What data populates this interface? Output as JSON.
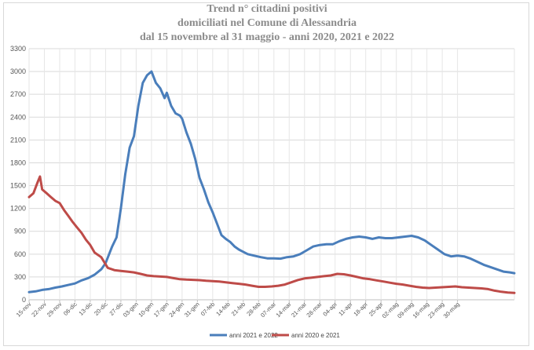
{
  "chart_data": {
    "type": "line",
    "title_lines": [
      "Trend n° cittadini positivi",
      "domiciliati nel Comune di Alessandria",
      "dal 15 novembre al 31 maggio - anni 2020, 2021 e 2022"
    ],
    "xlabel": "",
    "ylabel": "",
    "ylim": [
      0,
      3300
    ],
    "yticks": [
      0,
      300,
      600,
      900,
      1200,
      1500,
      1800,
      2100,
      2400,
      2700,
      3000,
      3300
    ],
    "grid": true,
    "legend_position": "bottom",
    "x_tick_labels": [
      "15-nov",
      "22-nov",
      "29-nov",
      "06-dic",
      "13-dic",
      "20-dic",
      "27-dic",
      "03-gen",
      "10-gen",
      "17-gen",
      "24-gen",
      "31-gen",
      "07-feb",
      "14-feb",
      "21-feb",
      "28-feb",
      "07-mar",
      "14-mar",
      "21-mar",
      "28-mar",
      "04-apr",
      "11-apr",
      "18-apr",
      "25-apr",
      "02-mag",
      "09-mag",
      "16-mag",
      "23-mag",
      "30-mag"
    ],
    "series": [
      {
        "name": "anni 2021 e 2022",
        "color": "#4a7ebb",
        "points": [
          [
            0,
            100
          ],
          [
            3,
            110
          ],
          [
            6,
            130
          ],
          [
            9,
            140
          ],
          [
            12,
            160
          ],
          [
            15,
            175
          ],
          [
            18,
            195
          ],
          [
            21,
            215
          ],
          [
            24,
            255
          ],
          [
            27,
            285
          ],
          [
            30,
            330
          ],
          [
            33,
            400
          ],
          [
            35,
            480
          ],
          [
            38,
            700
          ],
          [
            40,
            820
          ],
          [
            42,
            1200
          ],
          [
            44,
            1650
          ],
          [
            46,
            2000
          ],
          [
            48,
            2150
          ],
          [
            50,
            2550
          ],
          [
            52,
            2850
          ],
          [
            54,
            2950
          ],
          [
            56,
            3000
          ],
          [
            58,
            2850
          ],
          [
            60,
            2780
          ],
          [
            62,
            2650
          ],
          [
            63,
            2720
          ],
          [
            65,
            2550
          ],
          [
            67,
            2450
          ],
          [
            69,
            2420
          ],
          [
            70,
            2380
          ],
          [
            72,
            2200
          ],
          [
            74,
            2050
          ],
          [
            76,
            1850
          ],
          [
            78,
            1600
          ],
          [
            80,
            1450
          ],
          [
            82,
            1280
          ],
          [
            84,
            1150
          ],
          [
            86,
            1000
          ],
          [
            88,
            850
          ],
          [
            90,
            800
          ],
          [
            92,
            760
          ],
          [
            94,
            700
          ],
          [
            96,
            660
          ],
          [
            98,
            630
          ],
          [
            100,
            600
          ],
          [
            103,
            580
          ],
          [
            106,
            560
          ],
          [
            109,
            545
          ],
          [
            112,
            545
          ],
          [
            115,
            540
          ],
          [
            118,
            560
          ],
          [
            121,
            570
          ],
          [
            124,
            600
          ],
          [
            127,
            650
          ],
          [
            130,
            700
          ],
          [
            133,
            720
          ],
          [
            136,
            730
          ],
          [
            139,
            730
          ],
          [
            142,
            770
          ],
          [
            145,
            800
          ],
          [
            148,
            820
          ],
          [
            151,
            830
          ],
          [
            154,
            820
          ],
          [
            157,
            800
          ],
          [
            160,
            820
          ],
          [
            163,
            810
          ],
          [
            166,
            810
          ],
          [
            169,
            820
          ],
          [
            172,
            830
          ],
          [
            175,
            840
          ],
          [
            178,
            820
          ],
          [
            181,
            780
          ],
          [
            184,
            720
          ],
          [
            187,
            660
          ],
          [
            190,
            600
          ],
          [
            193,
            570
          ],
          [
            196,
            580
          ],
          [
            199,
            570
          ],
          [
            202,
            540
          ],
          [
            205,
            500
          ],
          [
            208,
            460
          ],
          [
            211,
            430
          ],
          [
            214,
            400
          ],
          [
            217,
            370
          ],
          [
            220,
            360
          ],
          [
            222,
            350
          ]
        ]
      },
      {
        "name": "anni 2020 e 2021",
        "color": "#be4b48",
        "points": [
          [
            0,
            1350
          ],
          [
            2,
            1400
          ],
          [
            4,
            1550
          ],
          [
            5,
            1620
          ],
          [
            6,
            1450
          ],
          [
            8,
            1400
          ],
          [
            10,
            1350
          ],
          [
            12,
            1300
          ],
          [
            14,
            1270
          ],
          [
            16,
            1180
          ],
          [
            18,
            1100
          ],
          [
            20,
            1020
          ],
          [
            22,
            950
          ],
          [
            24,
            880
          ],
          [
            26,
            790
          ],
          [
            28,
            720
          ],
          [
            30,
            620
          ],
          [
            33,
            560
          ],
          [
            36,
            420
          ],
          [
            39,
            390
          ],
          [
            42,
            380
          ],
          [
            45,
            370
          ],
          [
            48,
            360
          ],
          [
            51,
            340
          ],
          [
            54,
            320
          ],
          [
            57,
            310
          ],
          [
            60,
            305
          ],
          [
            63,
            300
          ],
          [
            66,
            285
          ],
          [
            69,
            270
          ],
          [
            72,
            265
          ],
          [
            75,
            262
          ],
          [
            78,
            258
          ],
          [
            81,
            250
          ],
          [
            84,
            245
          ],
          [
            87,
            240
          ],
          [
            90,
            230
          ],
          [
            93,
            220
          ],
          [
            96,
            210
          ],
          [
            99,
            200
          ],
          [
            102,
            185
          ],
          [
            105,
            170
          ],
          [
            108,
            170
          ],
          [
            111,
            175
          ],
          [
            114,
            185
          ],
          [
            117,
            200
          ],
          [
            120,
            230
          ],
          [
            123,
            260
          ],
          [
            126,
            280
          ],
          [
            129,
            290
          ],
          [
            132,
            300
          ],
          [
            135,
            310
          ],
          [
            138,
            320
          ],
          [
            141,
            340
          ],
          [
            144,
            335
          ],
          [
            147,
            320
          ],
          [
            150,
            300
          ],
          [
            153,
            280
          ],
          [
            156,
            270
          ],
          [
            159,
            255
          ],
          [
            162,
            240
          ],
          [
            165,
            225
          ],
          [
            168,
            210
          ],
          [
            171,
            200
          ],
          [
            174,
            185
          ],
          [
            177,
            170
          ],
          [
            180,
            160
          ],
          [
            183,
            155
          ],
          [
            186,
            160
          ],
          [
            189,
            165
          ],
          [
            192,
            170
          ],
          [
            195,
            175
          ],
          [
            198,
            165
          ],
          [
            201,
            160
          ],
          [
            204,
            155
          ],
          [
            207,
            150
          ],
          [
            210,
            140
          ],
          [
            213,
            120
          ],
          [
            216,
            105
          ],
          [
            219,
            95
          ],
          [
            222,
            90
          ]
        ]
      }
    ]
  }
}
